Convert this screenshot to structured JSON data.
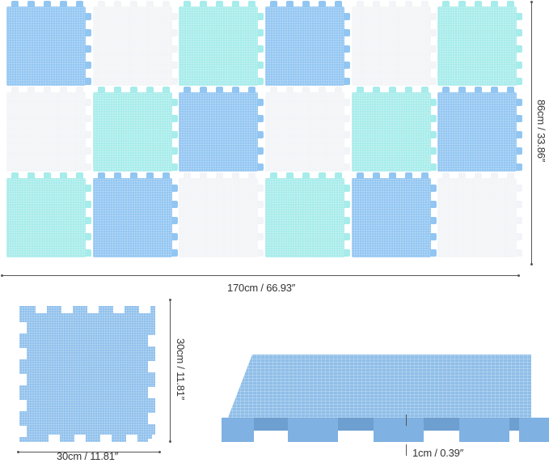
{
  "product": {
    "type": "interlocking foam puzzle play mat",
    "tile_colors": {
      "blue": "#92c6f2",
      "mint": "#a6ecea",
      "white": "#f2f4f7"
    },
    "grid": {
      "columns": 6,
      "rows": 3,
      "pattern": [
        [
          "blue",
          "white",
          "mint",
          "blue",
          "white",
          "mint"
        ],
        [
          "white",
          "mint",
          "blue",
          "white",
          "mint",
          "blue"
        ],
        [
          "mint",
          "blue",
          "white",
          "mint",
          "blue",
          "white"
        ]
      ]
    }
  },
  "dimensions": {
    "overall_width": "170cm / 66.93″",
    "overall_height": "86cm / 33.86″",
    "tile_width": "30cm / 11.81″",
    "tile_height": "30cm / 11.81″",
    "thickness": "1cm / 0.39″"
  }
}
